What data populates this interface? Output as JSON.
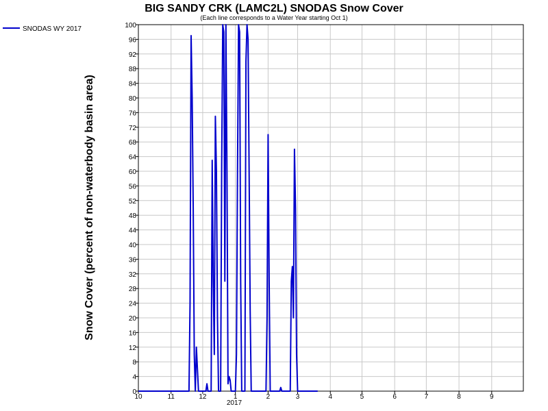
{
  "chart_data": {
    "type": "line",
    "title": "BIG SANDY CRK (LAMC2L) SNODAS Snow Cover",
    "subtitle": "(Each line corresponds to a Water Year starting Oct 1)",
    "ylabel": "Snow Cover (percent of non-waterbody basin area)",
    "xlabel": "",
    "ylim": [
      0,
      100
    ],
    "yticks": [
      0,
      4,
      8,
      12,
      16,
      20,
      24,
      28,
      32,
      36,
      40,
      44,
      48,
      52,
      56,
      60,
      64,
      68,
      72,
      76,
      80,
      84,
      88,
      92,
      96,
      100
    ],
    "xlim": [
      "2016-10-01",
      "2017-09-30"
    ],
    "xticks": [
      {
        "date": "2016-10-01",
        "label": "10"
      },
      {
        "date": "2016-11-01",
        "label": "11"
      },
      {
        "date": "2016-12-01",
        "label": "12"
      },
      {
        "date": "2017-01-01",
        "label": "1"
      },
      {
        "date": "2017-02-01",
        "label": "2"
      },
      {
        "date": "2017-03-01",
        "label": "3"
      },
      {
        "date": "2017-04-01",
        "label": "4"
      },
      {
        "date": "2017-05-01",
        "label": "5"
      },
      {
        "date": "2017-06-01",
        "label": "6"
      },
      {
        "date": "2017-07-01",
        "label": "7"
      },
      {
        "date": "2017-08-01",
        "label": "8"
      },
      {
        "date": "2017-09-01",
        "label": "9"
      }
    ],
    "year_label": "2017",
    "grid": true,
    "legend_position": "top-left",
    "series": [
      {
        "name": "SNODAS WY 2017",
        "color": "#0000cc",
        "points": [
          [
            "2016-10-01",
            0
          ],
          [
            "2016-11-18",
            0
          ],
          [
            "2016-11-19",
            24
          ],
          [
            "2016-11-20",
            97
          ],
          [
            "2016-11-21",
            80
          ],
          [
            "2016-11-22",
            50
          ],
          [
            "2016-11-23",
            10
          ],
          [
            "2016-11-24",
            0
          ],
          [
            "2016-11-25",
            12
          ],
          [
            "2016-11-26",
            6
          ],
          [
            "2016-11-27",
            0
          ],
          [
            "2016-12-04",
            0
          ],
          [
            "2016-12-05",
            2
          ],
          [
            "2016-12-06",
            0
          ],
          [
            "2016-12-09",
            0
          ],
          [
            "2016-12-10",
            63
          ],
          [
            "2016-12-11",
            30
          ],
          [
            "2016-12-12",
            10
          ],
          [
            "2016-12-13",
            75
          ],
          [
            "2016-12-14",
            60
          ],
          [
            "2016-12-15",
            20
          ],
          [
            "2016-12-16",
            0
          ],
          [
            "2016-12-18",
            0
          ],
          [
            "2016-12-19",
            62
          ],
          [
            "2016-12-20",
            100
          ],
          [
            "2016-12-21",
            98
          ],
          [
            "2016-12-22",
            30
          ],
          [
            "2016-12-23",
            100
          ],
          [
            "2016-12-24",
            60
          ],
          [
            "2016-12-25",
            2
          ],
          [
            "2016-12-26",
            4
          ],
          [
            "2016-12-27",
            3
          ],
          [
            "2016-12-28",
            0
          ],
          [
            "2017-01-01",
            0
          ],
          [
            "2017-01-02",
            10
          ],
          [
            "2017-01-03",
            60
          ],
          [
            "2017-01-04",
            100
          ],
          [
            "2017-01-05",
            98
          ],
          [
            "2017-01-06",
            30
          ],
          [
            "2017-01-07",
            0
          ],
          [
            "2017-01-10",
            0
          ],
          [
            "2017-01-11",
            90
          ],
          [
            "2017-01-12",
            100
          ],
          [
            "2017-01-13",
            96
          ],
          [
            "2017-01-14",
            60
          ],
          [
            "2017-01-15",
            22
          ],
          [
            "2017-01-16",
            0
          ],
          [
            "2017-01-30",
            0
          ],
          [
            "2017-01-31",
            20
          ],
          [
            "2017-02-01",
            70
          ],
          [
            "2017-02-02",
            30
          ],
          [
            "2017-02-03",
            0
          ],
          [
            "2017-02-12",
            0
          ],
          [
            "2017-02-13",
            1
          ],
          [
            "2017-02-14",
            0
          ],
          [
            "2017-02-22",
            0
          ],
          [
            "2017-02-23",
            30
          ],
          [
            "2017-02-24",
            34
          ],
          [
            "2017-02-25",
            20
          ],
          [
            "2017-02-26",
            66
          ],
          [
            "2017-02-27",
            50
          ],
          [
            "2017-02-28",
            10
          ],
          [
            "2017-03-01",
            0
          ],
          [
            "2017-03-20",
            0
          ]
        ]
      }
    ]
  }
}
